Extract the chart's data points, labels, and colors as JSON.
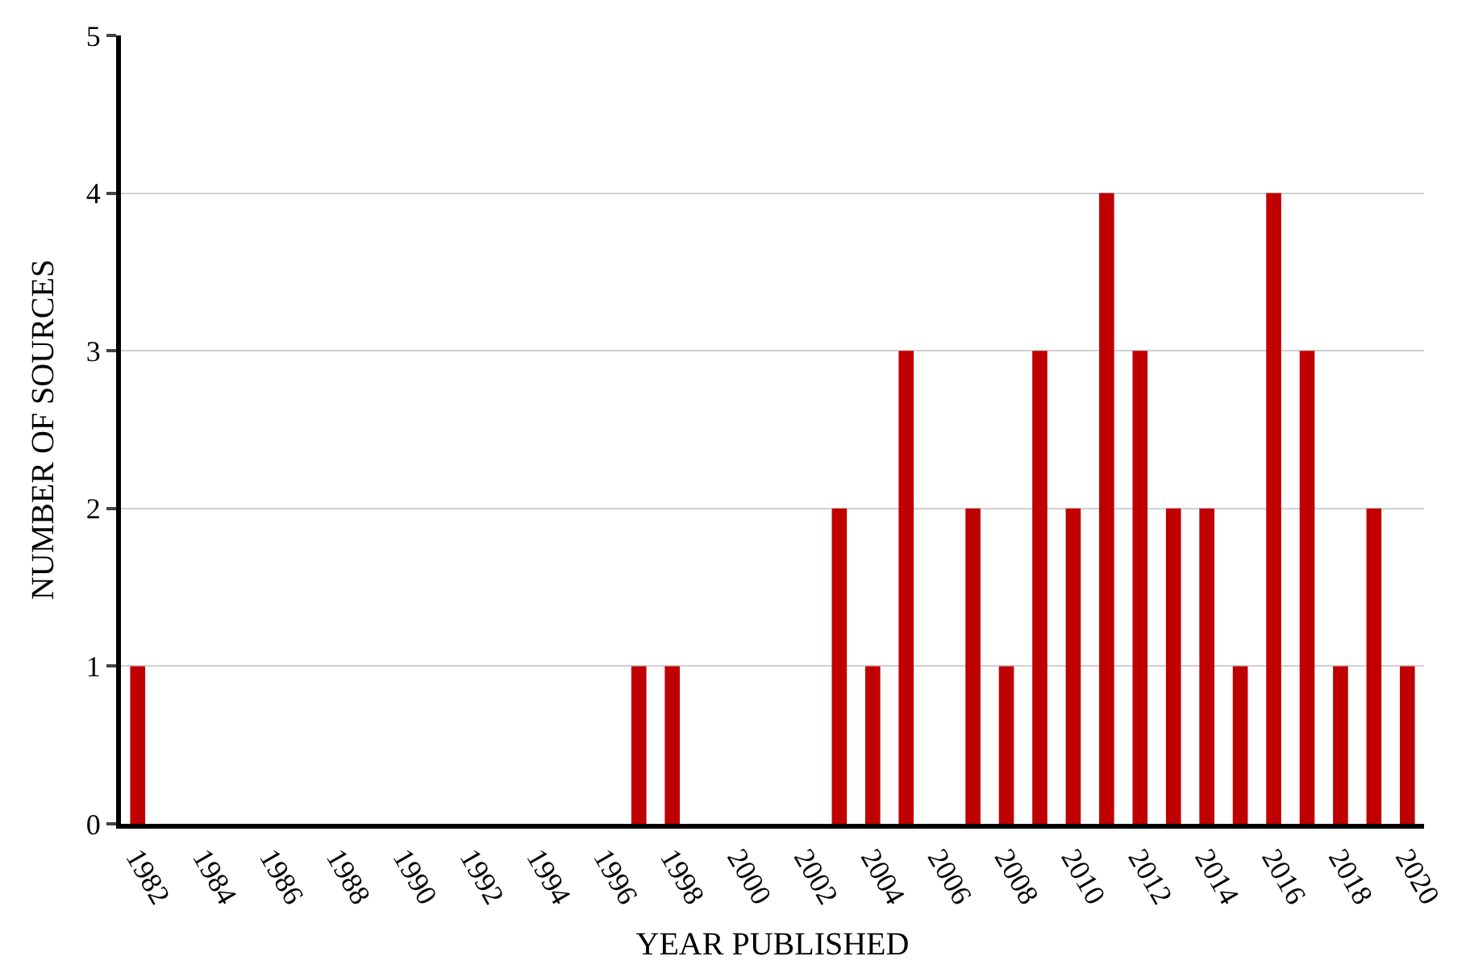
{
  "chart_data": {
    "type": "bar",
    "xlabel": "YEAR PUBLISHED",
    "ylabel": "NUMBER OF SOURCES",
    "categories": [
      "1982",
      null,
      "1984",
      null,
      "1986",
      null,
      "1988",
      null,
      "1990",
      null,
      "1992",
      null,
      "1994",
      null,
      "1996",
      null,
      "1998",
      null,
      "2000",
      null,
      "2002",
      null,
      "2004",
      null,
      "2006",
      null,
      "2008",
      null,
      "2010",
      null,
      "2012",
      null,
      "2014",
      null,
      "2016",
      null,
      "2018",
      null,
      "2020"
    ],
    "values": [
      1,
      0,
      0,
      0,
      0,
      0,
      0,
      0,
      0,
      0,
      0,
      0,
      0,
      0,
      0,
      1,
      1,
      0,
      0,
      0,
      0,
      2,
      1,
      3,
      0,
      2,
      1,
      3,
      2,
      4,
      3,
      2,
      2,
      1,
      4,
      3,
      1,
      2,
      1
    ],
    "color": "#c00000",
    "ylim": [
      0,
      5
    ],
    "yticks": [
      0,
      1,
      2,
      3,
      4,
      5
    ],
    "grid": "y",
    "legend": false
  }
}
